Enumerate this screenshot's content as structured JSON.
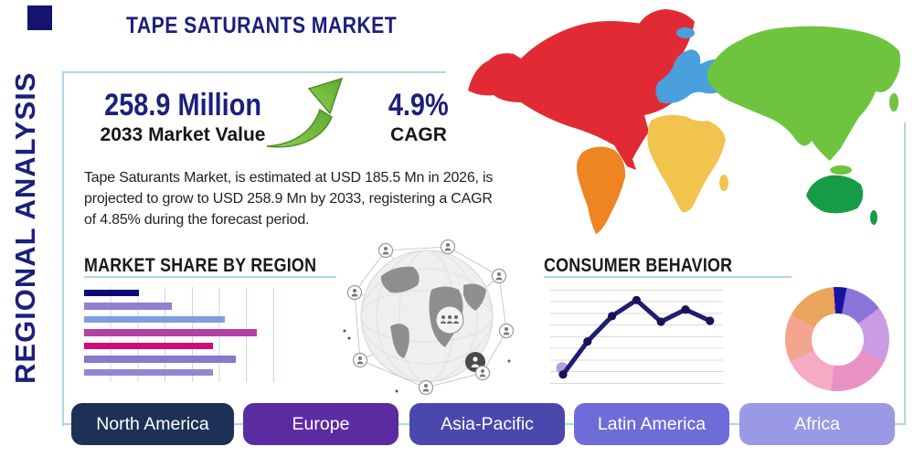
{
  "theme": {
    "navy_text": "#1b1f7d",
    "border_blue": "#abd7e9",
    "header_black": "#191919",
    "arrow_green": "#7cc142"
  },
  "sidebar": {
    "label": "REGIONAL ANALYSIS"
  },
  "header": {
    "title": "TAPE SATURANTS MARKET"
  },
  "stats": {
    "market_value": "258.9 Million",
    "market_value_label": "2033 Market Value",
    "cagr_value": "4.9%",
    "cagr_label": "CAGR"
  },
  "description_lines": [
    "Tape Saturants Market, is estimated at USD 185.5 Mn in 2026, is",
    "projected to grow to USD 258.9 Mn by 2033, registering a CAGR",
    "of 4.85% during the forecast period."
  ],
  "sections": {
    "market_share_title": "MARKET SHARE BY REGION",
    "consumer_behavior_title": "CONSUMER BEHAVIOR"
  },
  "map": {
    "regions": [
      {
        "name": "North America",
        "color": "#e22a34"
      },
      {
        "name": "South America",
        "color": "#ef8422"
      },
      {
        "name": "Europe",
        "color": "#4aa0dd"
      },
      {
        "name": "Africa",
        "color": "#f2c44e"
      },
      {
        "name": "Asia",
        "color": "#6ec43f"
      },
      {
        "name": "Oceania",
        "color": "#169c47"
      }
    ]
  },
  "region_buttons": [
    {
      "label": "North America",
      "color": "#1d3156"
    },
    {
      "label": "Europe",
      "color": "#5b2ca1"
    },
    {
      "label": "Asia-Pacific",
      "color": "#4a48ac"
    },
    {
      "label": "Latin America",
      "color": "#6e6cd8"
    },
    {
      "label": "Africa",
      "color": "#9a99e6"
    }
  ],
  "chart_data": [
    {
      "type": "bar",
      "title": "MARKET SHARE BY REGION",
      "orientation": "horizontal",
      "values": [
        29,
        46,
        74,
        91,
        68,
        80,
        68
      ],
      "values_are_estimated": true,
      "xlim": [
        0,
        100
      ],
      "grid": true,
      "colors": [
        "#090979",
        "#9080cf",
        "#7f9ede",
        "#b341a4",
        "#d00a78",
        "#8578cf",
        "#9486d4"
      ]
    },
    {
      "type": "line",
      "title": "CONSUMER BEHAVIOR",
      "x": [
        1,
        2,
        3,
        4,
        5,
        6,
        7
      ],
      "values": [
        10,
        45,
        72,
        89,
        66,
        79,
        67
      ],
      "values_are_estimated": true,
      "ylim": [
        0,
        100
      ],
      "grid": true,
      "line_color": "#201d73",
      "point_color": "#16135a",
      "start_dot_color": "#b1a0dd"
    },
    {
      "type": "pie",
      "subtype": "donut",
      "values": [
        4,
        12,
        17,
        20,
        16,
        15,
        16
      ],
      "values_are_estimated": true,
      "colors": [
        "#1b12a5",
        "#8b74d9",
        "#c99be3",
        "#e892c3",
        "#f6abc3",
        "#f3a590",
        "#eaa45c"
      ]
    }
  ]
}
